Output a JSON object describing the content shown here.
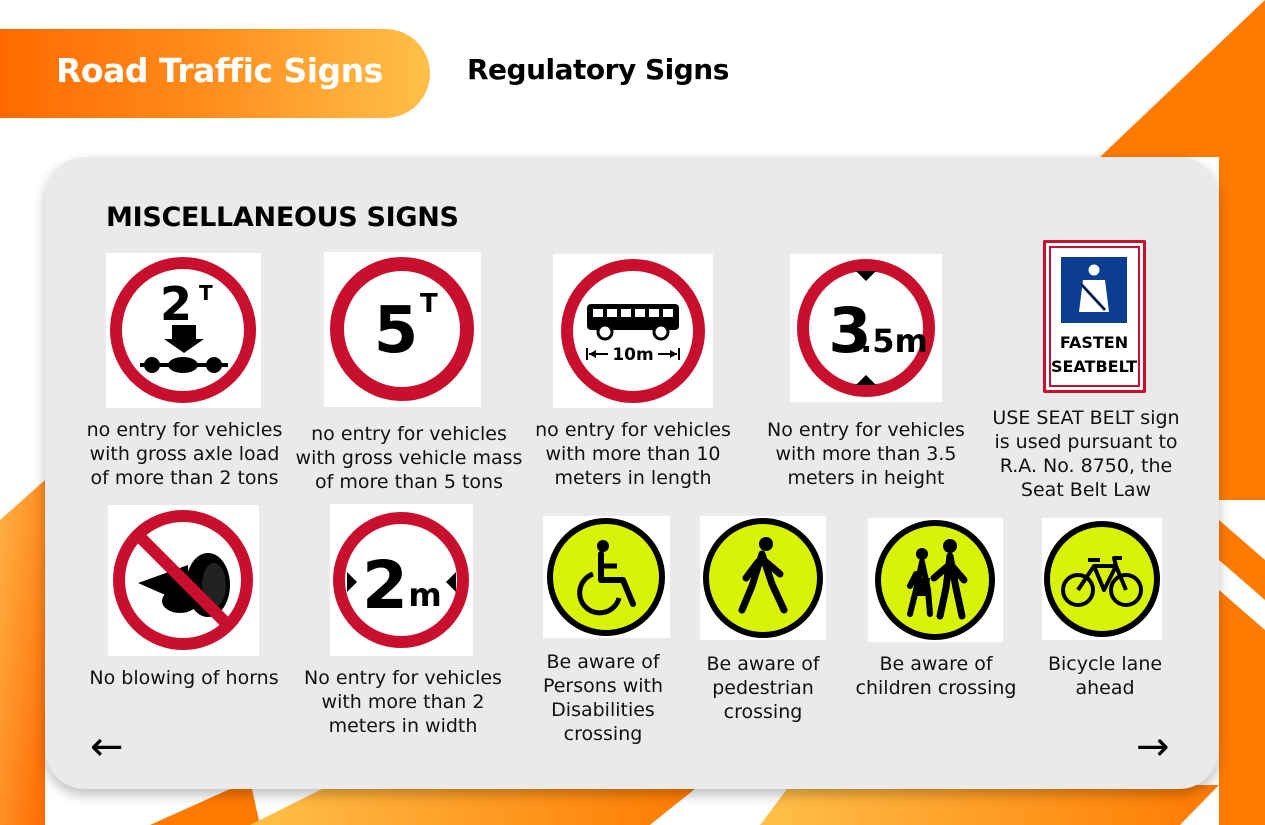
{
  "header": {
    "title": "Road Traffic Signs",
    "section": "Regulatory Signs"
  },
  "card": {
    "heading": "MISCELLANEOUS SIGNS",
    "signs": [
      {
        "caption": "no entry for vehicles with gross axle load of more than 2 tons",
        "glyph": "2",
        "sup": "T"
      },
      {
        "caption": "no entry for vehicles with gross vehicle mass of more than 5 tons",
        "glyph": "5",
        "sup": "T"
      },
      {
        "caption": "no entry for vehicles with more than 10 meters in length",
        "glyph": "10m"
      },
      {
        "caption": "No entry for vehicles with more than 3.5 meters in height",
        "glyph": "3",
        "glyph_small": ".5m"
      },
      {
        "caption": "USE SEAT BELT sign is used pursuant to R.A. No. 8750, the Seat Belt Law",
        "line1": "FASTEN",
        "line2": "SEATBELT"
      },
      {
        "caption": "No blowing of horns"
      },
      {
        "caption": "No entry for vehicles with more than 2 meters in width",
        "glyph": "2",
        "glyph_small": "m"
      },
      {
        "caption": "Be aware of Persons with Disabilities crossing"
      },
      {
        "caption": "Be aware of pedestrian crossing"
      },
      {
        "caption": "Be aware of children crossing"
      },
      {
        "caption": "Bicycle lane ahead"
      }
    ]
  },
  "nav": {
    "prev": "←",
    "next": "→"
  },
  "colors": {
    "orange": "#ff7a00",
    "sign_red": "#c8102e",
    "warning_yellow": "#d9f20a",
    "seatbelt_blue": "#0b3d91"
  }
}
